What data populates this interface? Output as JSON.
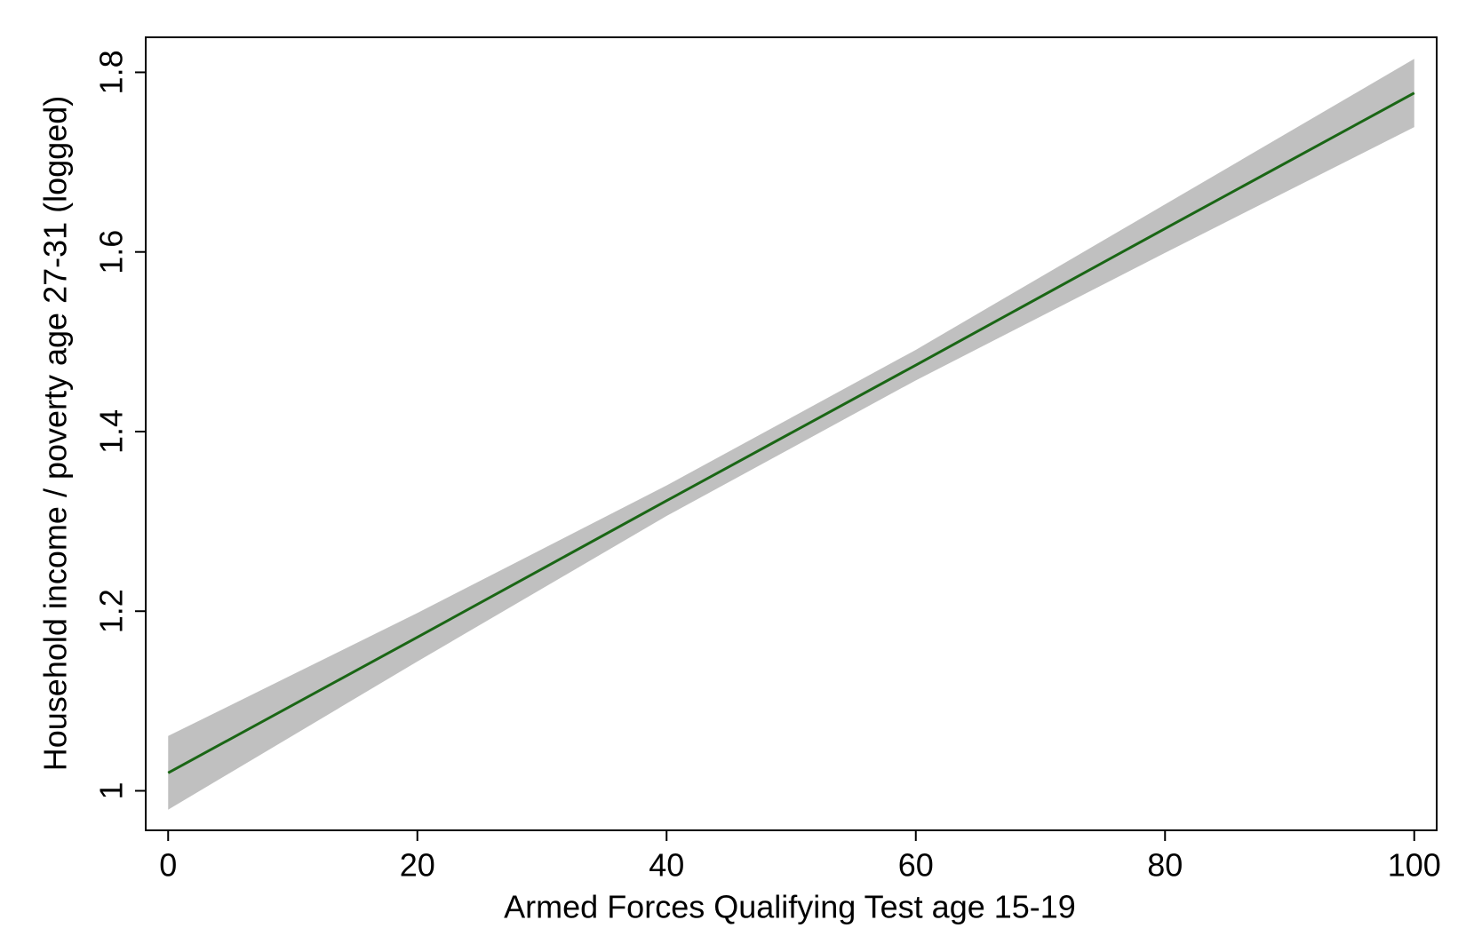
{
  "chart_data": {
    "type": "line",
    "x_label": "Armed Forces Qualifying Test age 15-19",
    "y_label": "Household income / poverty age 27-31  (logged)",
    "x": [
      0,
      20,
      40,
      60,
      80,
      100
    ],
    "series": [
      {
        "color": "#1a6615",
        "values": [
          1.02,
          1.171,
          1.323,
          1.474,
          1.626,
          1.777
        ]
      }
    ],
    "band": {
      "color": "#c0c0c0",
      "lower": [
        0.979,
        1.144,
        1.306,
        1.457,
        1.599,
        1.739
      ],
      "upper": [
        1.061,
        1.198,
        1.34,
        1.491,
        1.653,
        1.815
      ]
    },
    "xlim": [
      -1.8,
      101.8
    ],
    "ylim": [
      0.956,
      1.839
    ],
    "xticks": [
      0,
      20,
      40,
      60,
      80,
      100
    ],
    "yticks": [
      1,
      1.2,
      1.4,
      1.6,
      1.8
    ]
  }
}
